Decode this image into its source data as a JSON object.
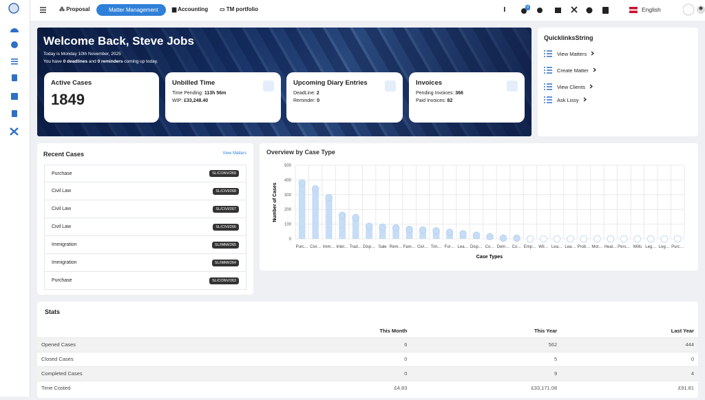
{
  "nav": {
    "items": [
      "Proposal",
      "Matter Management",
      "Accounting",
      "TM portfolio"
    ],
    "badge": "0",
    "language": "English"
  },
  "hero": {
    "title": "Welcome Back, Steve Jobs",
    "date": "Today is Monday 10th November, 2025",
    "summary": [
      "You have",
      "0 deadlines",
      "and",
      "0 reminders",
      "coming up today."
    ]
  },
  "cards": {
    "active": {
      "title": "Active Cases",
      "value": 1849
    },
    "unbilled": {
      "title": "Unbilled Time",
      "lines": [
        {
          "label": "Time Pending:",
          "value": "113h 56m"
        },
        {
          "label": "WIP:",
          "value": "£33,248.40"
        }
      ]
    },
    "diary": {
      "title": "Upcoming Diary Entries",
      "lines": [
        {
          "label": "DeadLine:",
          "value": "2"
        },
        {
          "label": "Reminder:",
          "value": "0"
        }
      ]
    },
    "invoices": {
      "title": "Invoices",
      "lines": [
        {
          "label": "Pending Invoices:",
          "value": "366"
        },
        {
          "label": "Paid Invoices:",
          "value": "82"
        }
      ]
    }
  },
  "quicklinks": {
    "title": "QuicklinksString",
    "items": [
      "View Matters",
      "Create Matter",
      "View Clients",
      "Ask Lissy"
    ]
  },
  "recent_cases": {
    "title": "Recent Cases",
    "link": "View Matters",
    "rows": [
      {
        "type": "Purchase",
        "ref": "SL/CONV/269"
      },
      {
        "type": "Civil Law",
        "ref": "SL/CIVI/268"
      },
      {
        "type": "Civil Law",
        "ref": "SL/CIVI/267"
      },
      {
        "type": "Civil Law",
        "ref": "SL/CIVI/266"
      },
      {
        "type": "Immigration",
        "ref": "SL/IMMI/265"
      },
      {
        "type": "Immigration",
        "ref": "SL/IMMI/264"
      },
      {
        "type": "Purchase",
        "ref": "SL/CONV/263"
      }
    ]
  },
  "chart_data": {
    "type": "bar",
    "title": "Overview by Case Type",
    "x_label": "Case Types",
    "y_label": "Number of Cases",
    "categories": [
      "Purc…",
      "Civi…",
      "Imm…",
      "Intel…",
      "Trad…",
      "Disp…",
      "Sale",
      "Rem…",
      "Fam…",
      "Civi…",
      "Trin…",
      "For…",
      "Lea…",
      "Disp…",
      "Co…",
      "Dem…",
      "Co…",
      "Emp…",
      "Wil…",
      "Lea…",
      "Lea…",
      "Prob…",
      "Mot…",
      "Heal…",
      "Pers…",
      "Wills",
      "Leg…",
      "Leg…",
      "Purc…"
    ],
    "values": [
      380,
      340,
      280,
      160,
      145,
      85,
      80,
      75,
      65,
      60,
      55,
      45,
      35,
      25,
      15,
      5,
      5,
      0,
      0,
      0,
      0,
      0,
      0,
      0,
      0,
      0,
      0,
      0,
      0
    ],
    "color": "#c7ddf6",
    "ylim": [
      0,
      500
    ],
    "yticks": [
      0,
      100,
      200,
      300,
      400,
      500
    ],
    "grid": true
  },
  "stats": {
    "title": "Stats",
    "columns": [
      "This Month",
      "This Year",
      "Last Year"
    ],
    "rows": [
      [
        "Opened Cases",
        "6",
        "562",
        "444"
      ],
      [
        "Closed Cases",
        "0",
        "5",
        "0"
      ],
      [
        "Completed Cases",
        "0",
        "9",
        "4"
      ],
      [
        "Time Costed",
        "£4.83",
        "£33,171.08",
        "£91.81"
      ]
    ]
  }
}
